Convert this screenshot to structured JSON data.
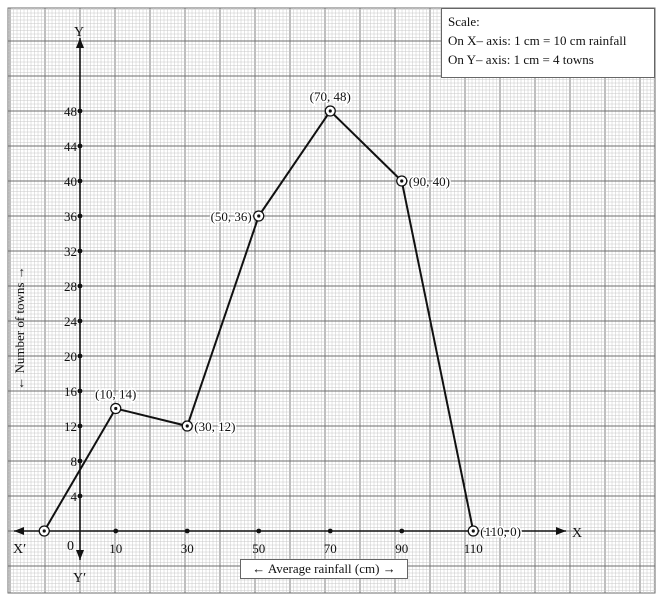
{
  "chart_data": {
    "type": "line",
    "title": "",
    "xlabel": "← Average rainfall (cm) →",
    "ylabel": "← Number of towns →",
    "x": [
      -10,
      10,
      30,
      50,
      70,
      90,
      110
    ],
    "y": [
      0,
      14,
      12,
      36,
      48,
      40,
      0
    ],
    "xticks": [
      "10",
      "30",
      "50",
      "70",
      "90",
      "110"
    ],
    "xtick_values": [
      10,
      30,
      50,
      70,
      90,
      110
    ],
    "yticks": [
      "4",
      "8",
      "12",
      "16",
      "20",
      "24",
      "28",
      "32",
      "36",
      "40",
      "44",
      "48"
    ],
    "ytick_values": [
      4,
      8,
      12,
      16,
      20,
      24,
      28,
      32,
      36,
      40,
      44,
      48
    ],
    "xlim": [
      -17,
      128
    ],
    "ylim": [
      -12,
      56
    ],
    "grid": true,
    "point_labels": [
      "",
      "(10, 14)",
      "(30, 12)",
      "(50, 36)",
      "(70, 48)",
      "(90, 40)",
      "(110, 0)"
    ],
    "label_side": [
      "",
      "above",
      "right",
      "left",
      "above",
      "right",
      "right"
    ]
  },
  "axes": {
    "x_name": "X",
    "x_neg_name": "X′",
    "y_name": "Y",
    "y_neg_name": "Y′",
    "origin": "0"
  },
  "scale": {
    "title": "Scale:",
    "x_line": "On X– axis: 1 cm = 10 cm rainfall",
    "y_line": "On Y– axis: 1 cm = 4 towns"
  },
  "colors": {
    "minor_grid": "#c8c8c8",
    "major_grid": "#6e6e6e",
    "ink": "#111111"
  }
}
